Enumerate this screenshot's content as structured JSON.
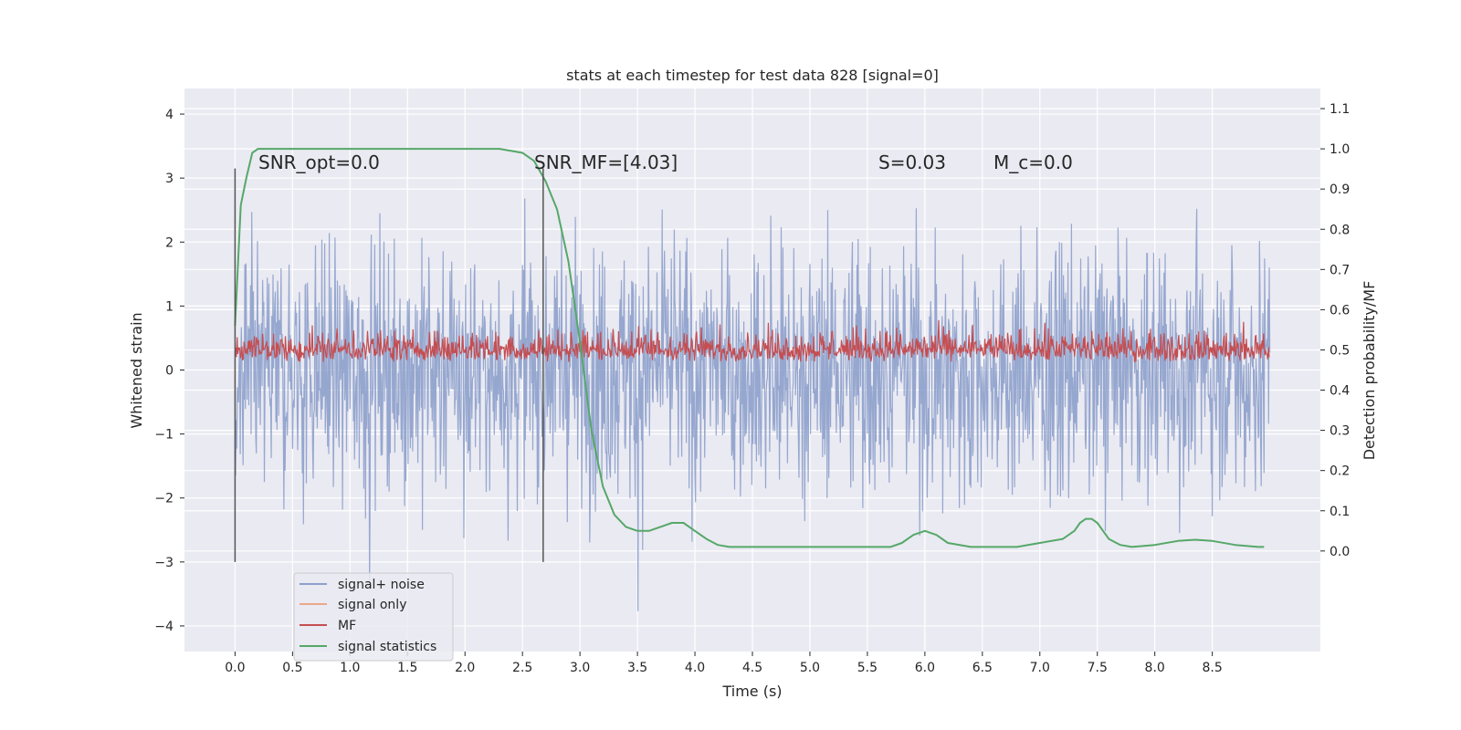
{
  "chart_data": {
    "type": "line",
    "title": "stats at each timestep for test data 828 [signal=0]",
    "xlabel": "Time (s)",
    "ylabel": "Whitened strain",
    "y2label": "Detection probability/MF",
    "xlim": [
      -0.44,
      9.44
    ],
    "ylim": [
      -4.4,
      4.4
    ],
    "y2lim": [
      -0.25,
      1.15
    ],
    "xticks": [
      "0.0",
      "0.5",
      "1.0",
      "1.5",
      "2.0",
      "2.5",
      "3.0",
      "3.5",
      "4.0",
      "4.5",
      "5.0",
      "5.5",
      "6.0",
      "6.5",
      "7.0",
      "7.5",
      "8.0",
      "8.5"
    ],
    "yticks": [
      "4",
      "3",
      "2",
      "1",
      "0",
      "−1",
      "−2",
      "−3",
      "−4"
    ],
    "y2ticks": [
      "1.1",
      "1.0",
      "0.9",
      "0.8",
      "0.7",
      "0.6",
      "0.5",
      "0.4",
      "0.3",
      "0.2",
      "0.1",
      "0.0"
    ],
    "grid": true,
    "legend_position": "lower-left",
    "annotations": [
      {
        "text": "SNR_opt=0.0",
        "x": 0.2,
        "y": 3.2
      },
      {
        "text": "SNR_MF=[4.03]",
        "x": 2.6,
        "y": 3.2
      },
      {
        "text": "S=0.03",
        "x": 5.6,
        "y": 3.2
      },
      {
        "text": "M_c=0.0",
        "x": 6.6,
        "y": 3.2
      }
    ],
    "vlines": [
      {
        "x": 0.0,
        "ymin": -3.0,
        "ymax": 3.15
      },
      {
        "x": 2.68,
        "ymin": -3.0,
        "ymax": 3.15
      }
    ],
    "series": [
      {
        "name": "signal+ noise",
        "color": "#8da0cb",
        "axis": "left",
        "style": "noise",
        "x_range": [
          0,
          9.0
        ],
        "sigma": 1.0
      },
      {
        "name": "signal only",
        "color": "#e8a98a",
        "axis": "left",
        "style": "flat",
        "value": 0.0
      },
      {
        "name": "MF",
        "color": "#c44e52",
        "axis": "left",
        "style": "band",
        "x_range": [
          0,
          9.0
        ],
        "low": 0.0,
        "high": 0.8
      },
      {
        "name": "signal statistics",
        "color": "#55a868",
        "axis": "right",
        "x": [
          0.0,
          0.05,
          0.1,
          0.15,
          0.2,
          0.3,
          0.5,
          1.0,
          1.5,
          2.0,
          2.3,
          2.5,
          2.6,
          2.7,
          2.8,
          2.9,
          3.0,
          3.1,
          3.2,
          3.3,
          3.4,
          3.5,
          3.6,
          3.7,
          3.8,
          3.9,
          4.0,
          4.1,
          4.2,
          4.3,
          4.4,
          4.5,
          5.0,
          5.5,
          5.7,
          5.8,
          5.9,
          6.0,
          6.1,
          6.2,
          6.4,
          6.6,
          6.8,
          7.0,
          7.2,
          7.3,
          7.35,
          7.4,
          7.45,
          7.5,
          7.6,
          7.7,
          7.8,
          8.0,
          8.2,
          8.35,
          8.5,
          8.7,
          8.9,
          8.95
        ],
        "values": [
          0.56,
          0.86,
          0.93,
          0.99,
          1.0,
          1.0,
          1.0,
          1.0,
          1.0,
          1.0,
          1.0,
          0.99,
          0.97,
          0.92,
          0.85,
          0.72,
          0.52,
          0.3,
          0.16,
          0.09,
          0.06,
          0.05,
          0.05,
          0.06,
          0.07,
          0.07,
          0.05,
          0.03,
          0.015,
          0.01,
          0.01,
          0.01,
          0.01,
          0.01,
          0.01,
          0.02,
          0.04,
          0.05,
          0.04,
          0.02,
          0.01,
          0.01,
          0.01,
          0.02,
          0.03,
          0.05,
          0.07,
          0.08,
          0.08,
          0.07,
          0.03,
          0.015,
          0.01,
          0.015,
          0.025,
          0.028,
          0.025,
          0.015,
          0.01,
          0.01
        ]
      }
    ]
  }
}
